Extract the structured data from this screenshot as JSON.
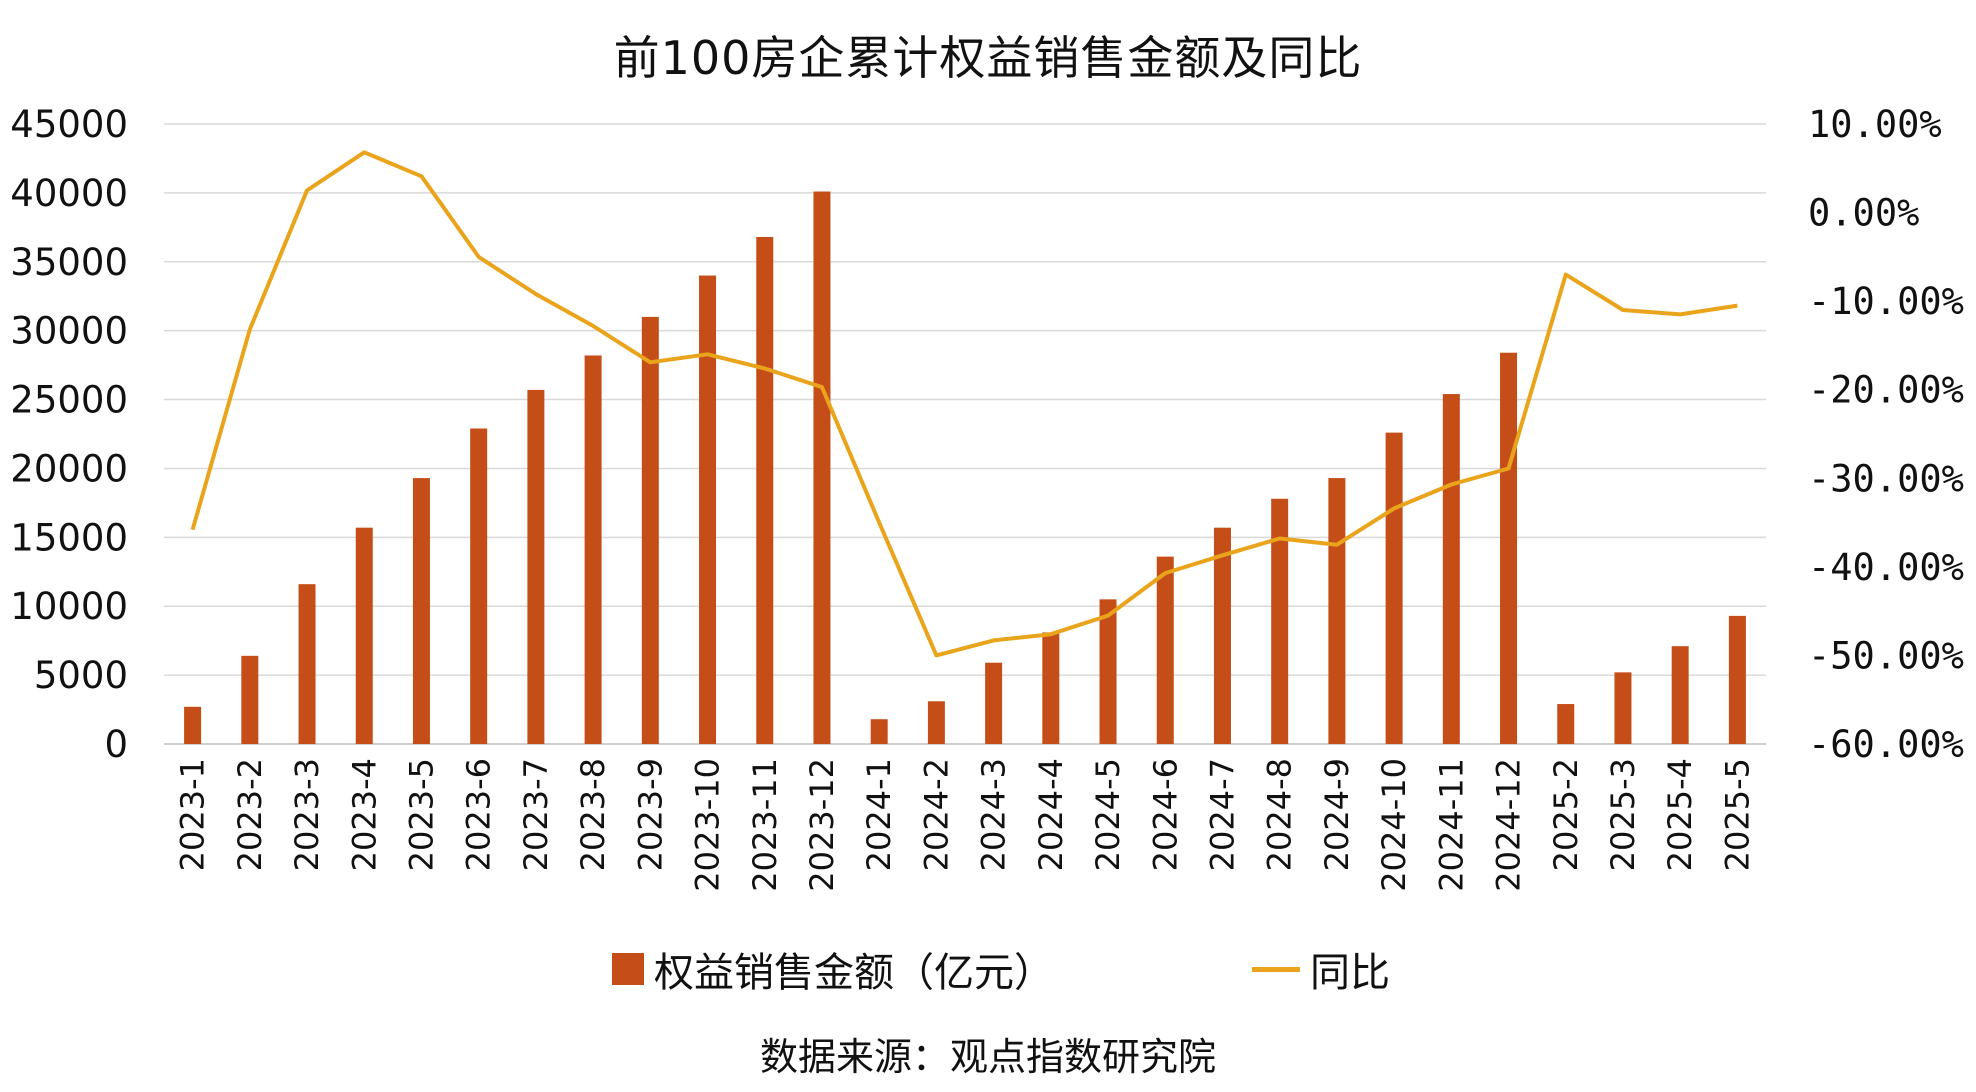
{
  "chart_data": {
    "type": "bar",
    "title": "前100房企累计权益销售金额及同比",
    "categories": [
      "2023-1",
      "2023-2",
      "2023-3",
      "2023-4",
      "2023-5",
      "2023-6",
      "2023-7",
      "2023-8",
      "2023-9",
      "2023-10",
      "2023-11",
      "2023-12",
      "2024-1",
      "2024-2",
      "2024-3",
      "2024-4",
      "2024-5",
      "2024-6",
      "2024-7",
      "2024-8",
      "2024-9",
      "2024-10",
      "2024-11",
      "2024-12",
      "2025-2",
      "2025-3",
      "2025-4",
      "2025-5"
    ],
    "series": [
      {
        "name": "权益销售金额（亿元）",
        "type": "bar",
        "axis": "left",
        "color": "#C54E18",
        "values": [
          2700,
          6400,
          11600,
          15700,
          19300,
          22900,
          25700,
          28200,
          31000,
          34000,
          36800,
          40100,
          1800,
          3100,
          5900,
          8100,
          10500,
          13600,
          15700,
          17800,
          19300,
          22600,
          25400,
          28400,
          2900,
          5200,
          7100,
          9300
        ]
      },
      {
        "name": "同比",
        "type": "line",
        "axis": "right",
        "color": "#E9A41C",
        "values": [
          -35.8,
          -13.2,
          2.5,
          6.8,
          4.1,
          -5.0,
          -9.2,
          -12.8,
          -16.9,
          -16.0,
          -17.6,
          -19.7,
          -35.0,
          -50.0,
          -48.3,
          -47.6,
          -45.5,
          -40.7,
          -38.7,
          -36.8,
          -37.5,
          -33.4,
          -30.7,
          -28.9,
          -7.0,
          -11.0,
          -11.5,
          -10.5
        ]
      }
    ],
    "y_left": {
      "min": 0,
      "max": 45000,
      "step": 5000,
      "ticks": [
        "0",
        "5000",
        "10000",
        "15000",
        "20000",
        "25000",
        "30000",
        "35000",
        "40000",
        "45000"
      ]
    },
    "y_right": {
      "min": -60,
      "max": 10,
      "step": 10,
      "ticks": [
        "-60.00%",
        "-50.00%",
        "-40.00%",
        "-30.00%",
        "-20.00%",
        "-10.00%",
        "0.00%",
        "10.00%"
      ]
    },
    "grid": true,
    "legend_position": "bottom"
  },
  "legend": {
    "bar_label": "权益销售金额（亿元）",
    "line_label": "同比"
  },
  "source": "数据来源：观点指数研究院"
}
